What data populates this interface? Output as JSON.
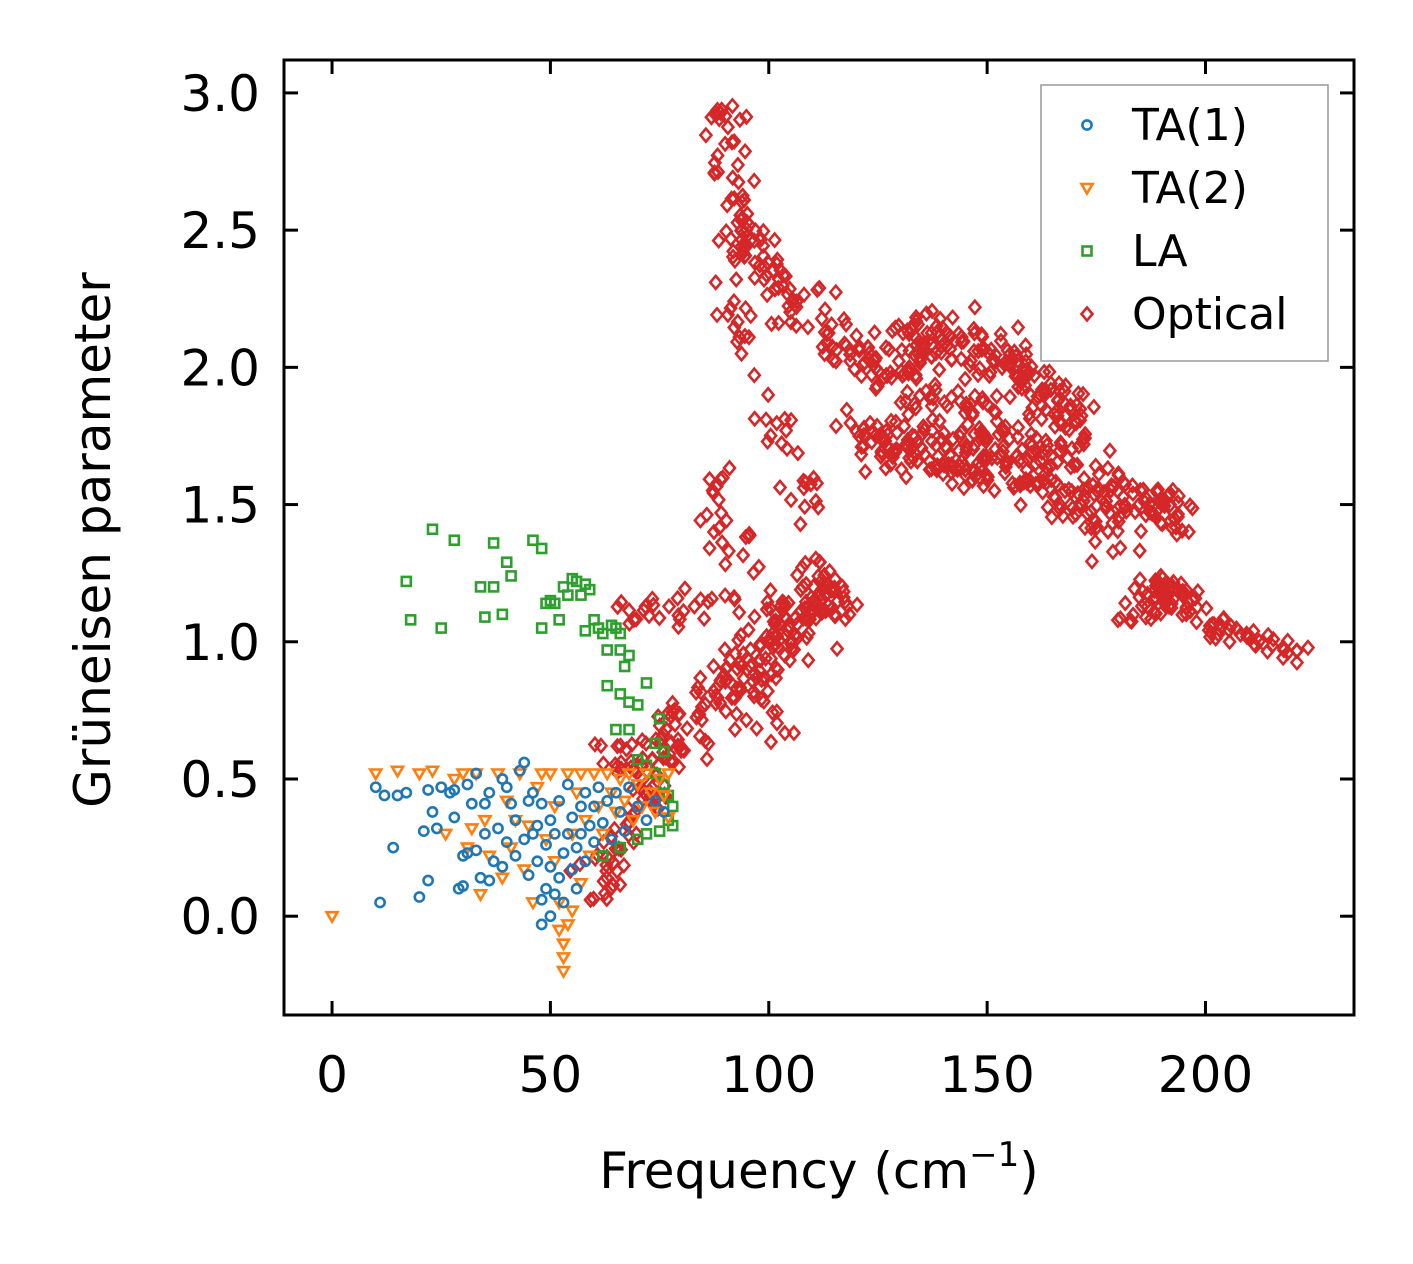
{
  "chart_data": {
    "type": "scatter",
    "xlabel": "Frequency (cm",
    "xlabel_sup": "−1",
    "xlabel_close": ")",
    "ylabel": "Grüneisen parameter",
    "xlim": [
      -11,
      234
    ],
    "ylim": [
      -0.36,
      3.12
    ],
    "xticks": [
      0,
      50,
      100,
      150,
      200
    ],
    "xtick_labels": [
      "0",
      "50",
      "100",
      "150",
      "200"
    ],
    "yticks": [
      0.0,
      0.5,
      1.0,
      1.5,
      2.0,
      2.5,
      3.0
    ],
    "ytick_labels": [
      "0.0",
      "0.5",
      "1.0",
      "1.5",
      "2.0",
      "2.5",
      "3.0"
    ],
    "legend_position": "top-right",
    "series": [
      {
        "name": "TA(1)",
        "marker": "circle",
        "color": "#1f77b4",
        "points": [
          [
            10,
            0.47
          ],
          [
            11,
            0.05
          ],
          [
            12,
            0.44
          ],
          [
            14,
            0.25
          ],
          [
            15,
            0.44
          ],
          [
            17,
            0.45
          ],
          [
            20,
            0.07
          ],
          [
            21,
            0.31
          ],
          [
            22,
            0.13
          ],
          [
            22,
            0.46
          ],
          [
            23,
            0.38
          ],
          [
            24,
            0.32
          ],
          [
            25,
            0.47
          ],
          [
            27,
            0.45
          ],
          [
            28,
            0.36
          ],
          [
            28,
            0.46
          ],
          [
            29,
            0.1
          ],
          [
            30,
            0.11
          ],
          [
            30,
            0.22
          ],
          [
            31,
            0.23
          ],
          [
            31,
            0.48
          ],
          [
            32,
            0.41
          ],
          [
            33,
            0.24
          ],
          [
            33,
            0.52
          ],
          [
            34,
            0.14
          ],
          [
            35,
            0.41
          ],
          [
            35,
            0.3
          ],
          [
            36,
            0.45
          ],
          [
            36,
            0.13
          ],
          [
            37,
            0.2
          ],
          [
            38,
            0.32
          ],
          [
            39,
            0.5
          ],
          [
            39,
            0.18
          ],
          [
            40,
            0.27
          ],
          [
            40,
            0.47
          ],
          [
            41,
            0.41
          ],
          [
            42,
            0.35
          ],
          [
            42,
            0.22
          ],
          [
            43,
            0.53
          ],
          [
            44,
            0.56
          ],
          [
            44,
            0.28
          ],
          [
            45,
            0.42
          ],
          [
            45,
            0.15
          ],
          [
            46,
            0.3
          ],
          [
            46,
            0.45
          ],
          [
            47,
            0.2
          ],
          [
            47,
            0.33
          ],
          [
            48,
            0.06
          ],
          [
            48,
            0.41
          ],
          [
            48,
            -0.03
          ],
          [
            49,
            0.1
          ],
          [
            49,
            0.26
          ],
          [
            50,
            0.0
          ],
          [
            50,
            0.35
          ],
          [
            50,
            0.18
          ],
          [
            51,
            0.3
          ],
          [
            51,
            0.08
          ],
          [
            52,
            0.14
          ],
          [
            52,
            0.42
          ],
          [
            53,
            0.23
          ],
          [
            53,
            0.05
          ],
          [
            54,
            0.3
          ],
          [
            54,
            0.48
          ],
          [
            55,
            0.17
          ],
          [
            55,
            0.36
          ],
          [
            56,
            0.25
          ],
          [
            56,
            0.1
          ],
          [
            57,
            0.4
          ],
          [
            57,
            0.3
          ],
          [
            58,
            0.45
          ],
          [
            58,
            0.2
          ],
          [
            59,
            0.33
          ],
          [
            60,
            0.4
          ],
          [
            60,
            0.27
          ],
          [
            61,
            0.47
          ],
          [
            62,
            0.34
          ],
          [
            63,
            0.42
          ],
          [
            64,
            0.28
          ],
          [
            65,
            0.45
          ],
          [
            66,
            0.38
          ],
          [
            67,
            0.31
          ],
          [
            68,
            0.47
          ],
          [
            70,
            0.4
          ],
          [
            72,
            0.35
          ],
          [
            74,
            0.42
          ],
          [
            76,
            0.38
          ]
        ]
      },
      {
        "name": "TA(2)",
        "marker": "triangle-down",
        "color": "#ff7f0e",
        "points": [
          [
            0,
            0.0
          ],
          [
            10,
            0.52
          ],
          [
            15,
            0.53
          ],
          [
            20,
            0.52
          ],
          [
            23,
            0.53
          ],
          [
            26,
            0.3
          ],
          [
            28,
            0.5
          ],
          [
            30,
            0.52
          ],
          [
            31,
            0.25
          ],
          [
            32,
            0.32
          ],
          [
            33,
            0.52
          ],
          [
            34,
            0.08
          ],
          [
            35,
            0.35
          ],
          [
            36,
            0.22
          ],
          [
            38,
            0.52
          ],
          [
            39,
            0.14
          ],
          [
            40,
            0.42
          ],
          [
            41,
            0.25
          ],
          [
            42,
            0.35
          ],
          [
            43,
            0.52
          ],
          [
            44,
            0.17
          ],
          [
            45,
            0.33
          ],
          [
            46,
            0.05
          ],
          [
            47,
            0.47
          ],
          [
            48,
            0.52
          ],
          [
            49,
            0.28
          ],
          [
            50,
            0.52
          ],
          [
            51,
            0.2
          ],
          [
            51,
            0.4
          ],
          [
            52,
            0.05
          ],
          [
            52,
            -0.05
          ],
          [
            53,
            -0.1
          ],
          [
            53,
            -0.15
          ],
          [
            53,
            -0.2
          ],
          [
            54,
            -0.03
          ],
          [
            54,
            0.52
          ],
          [
            55,
            0.02
          ],
          [
            55,
            0.3
          ],
          [
            56,
            0.45
          ],
          [
            57,
            0.12
          ],
          [
            57,
            0.52
          ],
          [
            58,
            0.35
          ],
          [
            59,
            0.22
          ],
          [
            60,
            0.52
          ],
          [
            61,
            0.4
          ],
          [
            62,
            0.3
          ],
          [
            63,
            0.52
          ],
          [
            64,
            0.45
          ],
          [
            65,
            0.38
          ],
          [
            66,
            0.5
          ],
          [
            67,
            0.42
          ],
          [
            68,
            0.52
          ],
          [
            69,
            0.35
          ],
          [
            70,
            0.48
          ],
          [
            71,
            0.4
          ],
          [
            72,
            0.52
          ],
          [
            73,
            0.45
          ],
          [
            74,
            0.38
          ],
          [
            75,
            0.5
          ],
          [
            76,
            0.44
          ],
          [
            77,
            0.52
          ],
          [
            77,
            0.36
          ]
        ]
      },
      {
        "name": "LA",
        "marker": "square",
        "color": "#2ca02c",
        "points": [
          [
            17,
            1.22
          ],
          [
            18,
            1.08
          ],
          [
            23,
            1.41
          ],
          [
            25,
            1.05
          ],
          [
            28,
            1.37
          ],
          [
            34,
            1.2
          ],
          [
            35,
            1.09
          ],
          [
            37,
            1.36
          ],
          [
            37,
            1.2
          ],
          [
            39,
            1.1
          ],
          [
            40,
            1.29
          ],
          [
            41,
            1.24
          ],
          [
            46,
            1.37
          ],
          [
            48,
            1.34
          ],
          [
            48,
            1.05
          ],
          [
            49,
            1.14
          ],
          [
            50,
            1.15
          ],
          [
            51,
            1.14
          ],
          [
            52,
            1.08
          ],
          [
            53,
            1.2
          ],
          [
            54,
            1.17
          ],
          [
            55,
            1.23
          ],
          [
            56,
            1.22
          ],
          [
            57,
            1.17
          ],
          [
            58,
            1.21
          ],
          [
            59,
            1.19
          ],
          [
            58,
            1.04
          ],
          [
            60,
            1.08
          ],
          [
            61,
            1.05
          ],
          [
            62,
            1.03
          ],
          [
            63,
            0.97
          ],
          [
            64,
            1.06
          ],
          [
            65,
            1.05
          ],
          [
            66,
            1.03
          ],
          [
            66,
            0.97
          ],
          [
            67,
            0.91
          ],
          [
            68,
            0.95
          ],
          [
            63,
            0.84
          ],
          [
            66,
            0.81
          ],
          [
            68,
            0.78
          ],
          [
            65,
            0.68
          ],
          [
            68,
            0.68
          ],
          [
            70,
            0.77
          ],
          [
            72,
            0.85
          ],
          [
            75,
            0.72
          ],
          [
            74,
            0.63
          ],
          [
            76,
            0.6
          ],
          [
            70,
            0.57
          ],
          [
            72,
            0.55
          ],
          [
            74,
            0.52
          ],
          [
            76,
            0.48
          ],
          [
            77,
            0.44
          ],
          [
            78,
            0.4
          ],
          [
            77,
            0.35
          ],
          [
            78,
            0.33
          ],
          [
            75,
            0.31
          ],
          [
            72,
            0.3
          ],
          [
            70,
            0.28
          ],
          [
            66,
            0.25
          ],
          [
            62,
            0.22
          ]
        ]
      },
      {
        "name": "Optical",
        "marker": "diamond",
        "color": "#d62728",
        "bands": [
          {
            "center": [
              [
                60,
                0.1
              ],
              [
                70,
                0.4
              ],
              [
                80,
                0.7
              ],
              [
                100,
                1.0
              ],
              [
                112,
                1.15
              ]
            ],
            "spread": 0.12,
            "count": 150
          },
          {
            "center": [
              [
                62,
                0.55
              ],
              [
                78,
                0.65
              ],
              [
                95,
                0.85
              ],
              [
                105,
                0.62
              ]
            ],
            "spread": 0.08,
            "count": 70
          },
          {
            "center": [
              [
                65,
                1.1
              ],
              [
                80,
                1.12
              ],
              [
                96,
                1.08
              ],
              [
                112,
                1.12
              ],
              [
                118,
                1.18
              ]
            ],
            "spread": 0.06,
            "count": 60
          },
          {
            "center": [
              [
                88,
                0.9
              ],
              [
                100,
                0.95
              ],
              [
                110,
                1.1
              ],
              [
                113,
                1.25
              ]
            ],
            "spread": 0.1,
            "count": 50
          },
          {
            "center": [
              [
                90,
                2.95
              ],
              [
                92,
                2.55
              ],
              [
                97,
                2.4
              ],
              [
                105,
                2.25
              ],
              [
                118,
                2.05
              ],
              [
                130,
                1.95
              ],
              [
                145,
                1.85
              ],
              [
                160,
                1.72
              ],
              [
                175,
                1.6
              ],
              [
                188,
                1.5
              ],
              [
                194,
                1.47
              ]
            ],
            "spread": 0.09,
            "count": 320
          },
          {
            "center": [
              [
                118,
                1.75
              ],
              [
                135,
                1.7
              ],
              [
                150,
                1.65
              ],
              [
                165,
                1.55
              ],
              [
                180,
                1.4
              ]
            ],
            "spread": 0.08,
            "count": 200
          },
          {
            "center": [
              [
                130,
                2.1
              ],
              [
                145,
                2.1
              ],
              [
                160,
                1.95
              ],
              [
                172,
                1.8
              ]
            ],
            "spread": 0.09,
            "count": 160
          },
          {
            "center": [
              [
                90,
                2.3
              ],
              [
                94,
                2.1
              ],
              [
                100,
                1.9
              ],
              [
                105,
                1.7
              ],
              [
                108,
                1.55
              ],
              [
                112,
                1.45
              ]
            ],
            "spread": 0.05,
            "count": 40
          },
          {
            "center": [
              [
                86,
                1.38
              ],
              [
                88,
                1.5
              ],
              [
                89,
                1.65
              ],
              [
                92,
                1.4
              ],
              [
                95,
                1.25
              ]
            ],
            "spread": 0.05,
            "count": 25
          },
          {
            "center": [
              [
                182,
                1.05
              ],
              [
                188,
                1.15
              ],
              [
                191,
                1.22
              ],
              [
                197,
                1.1
              ],
              [
                205,
                1.03
              ],
              [
                214,
                1.0
              ],
              [
                222,
                0.95
              ]
            ],
            "spread": 0.03,
            "count": 110
          }
        ]
      }
    ]
  }
}
